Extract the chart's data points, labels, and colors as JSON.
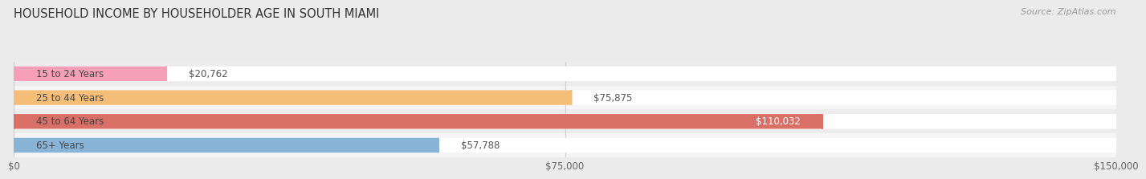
{
  "title": "HOUSEHOLD INCOME BY HOUSEHOLDER AGE IN SOUTH MIAMI",
  "source": "Source: ZipAtlas.com",
  "categories": [
    "15 to 24 Years",
    "25 to 44 Years",
    "45 to 64 Years",
    "65+ Years"
  ],
  "values": [
    20762,
    75875,
    110032,
    57788
  ],
  "bar_colors": [
    "#f5a0b8",
    "#f5be78",
    "#d97068",
    "#88b4d8"
  ],
  "row_bg_even": "#f0f0f0",
  "row_bg_odd": "#e8e8e8",
  "pill_bg_color": "#ffffff",
  "xlim": [
    0,
    150000
  ],
  "xticks": [
    0,
    75000,
    150000
  ],
  "xtick_labels": [
    "$0",
    "$75,000",
    "$150,000"
  ],
  "title_fontsize": 10.5,
  "source_fontsize": 8,
  "bar_height": 0.62,
  "value_inside_idx": 2,
  "background_color": "#ebebeb"
}
